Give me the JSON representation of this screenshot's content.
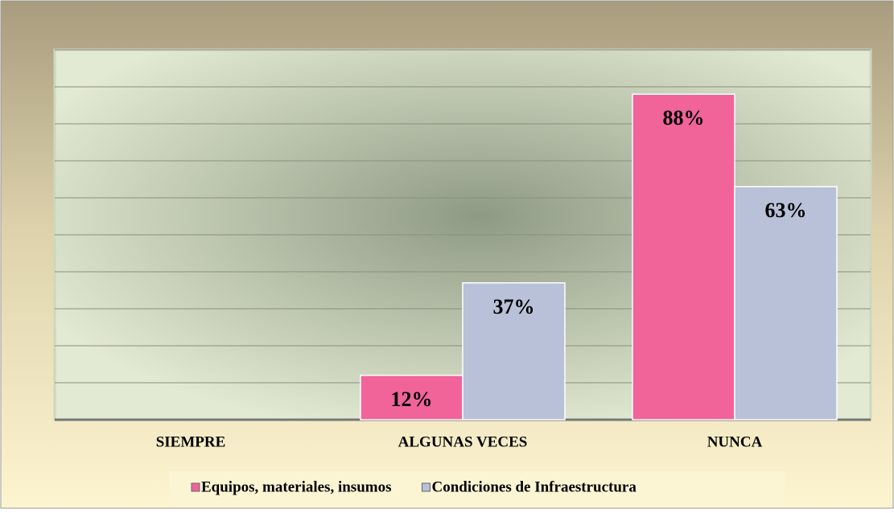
{
  "chart_data": {
    "type": "bar",
    "categories": [
      "SIEMPRE",
      "ALGUNAS VECES",
      "NUNCA"
    ],
    "series": [
      {
        "name": "Equipos, materiales, insumos",
        "color": "#f0649a",
        "values": [
          0,
          12,
          88
        ],
        "value_labels": [
          null,
          "12%",
          "88%"
        ]
      },
      {
        "name": "Condiciones de Infraestructura",
        "color": "#b9c1d8",
        "values": [
          0,
          37,
          63
        ],
        "value_labels": [
          null,
          "37%",
          "63%"
        ]
      }
    ],
    "ylim": [
      0,
      100
    ],
    "yticks": [
      0,
      10,
      20,
      30,
      40,
      50,
      60,
      70,
      80,
      90,
      100
    ],
    "grid": true,
    "legend": "bottom"
  }
}
